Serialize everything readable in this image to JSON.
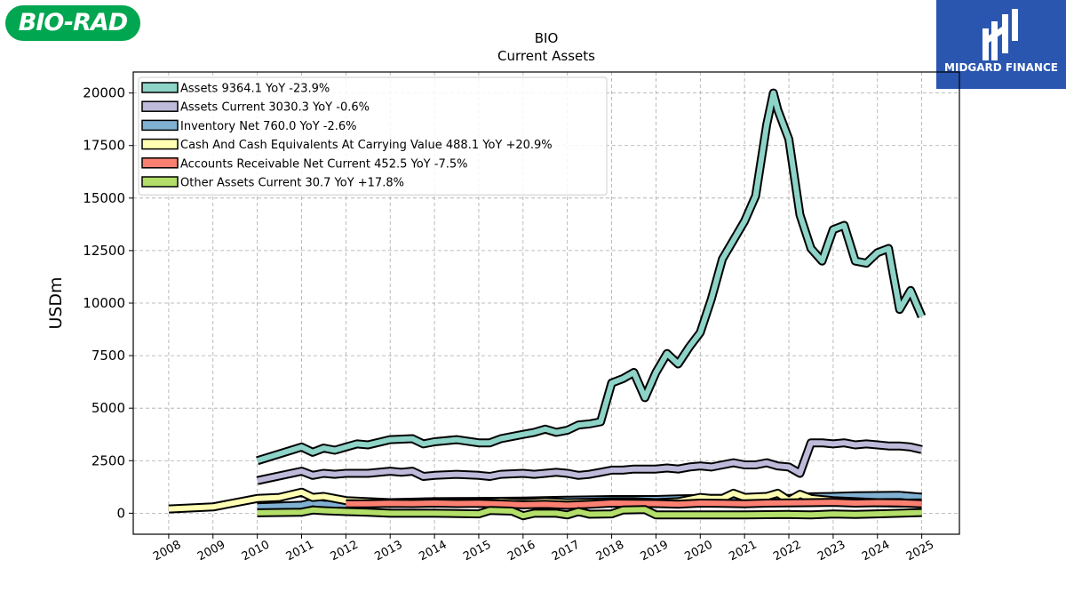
{
  "logos": {
    "left_text": "BIO-RAD",
    "right_text": "MIDGARD FINANCE",
    "left_color": "#00a650",
    "right_color": "#2a56b0"
  },
  "chart_data": {
    "type": "line",
    "title": "BIO",
    "subtitle": "Current  Assets",
    "ylabel": "USDm",
    "xlabel": "",
    "ylim": [
      -1000,
      21000
    ],
    "xlim": [
      2007.2,
      2025.85
    ],
    "yticks": [
      0,
      2500,
      5000,
      7500,
      10000,
      12500,
      15000,
      17500,
      20000
    ],
    "xticks": [
      "2008",
      "2009",
      "2010",
      "2011",
      "2012",
      "2013",
      "2014",
      "2015",
      "2016",
      "2017",
      "2018",
      "2019",
      "2020",
      "2021",
      "2022",
      "2023",
      "2024",
      "2025"
    ],
    "grid": true,
    "legend_position": "top-left",
    "series": [
      {
        "name": "Assets",
        "legend": "Assets  9364.1 YoY -23.9%",
        "color": "#8dd3c7",
        "x": [
          2010.0,
          2011.0,
          2011.25,
          2011.5,
          2011.75,
          2012.0,
          2012.25,
          2012.5,
          2013.0,
          2013.5,
          2013.75,
          2014.0,
          2014.5,
          2015.0,
          2015.25,
          2015.5,
          2016.0,
          2016.25,
          2016.5,
          2016.75,
          2017.0,
          2017.25,
          2017.5,
          2017.75,
          2018.0,
          2018.25,
          2018.5,
          2018.75,
          2019.0,
          2019.25,
          2019.5,
          2019.75,
          2020.0,
          2020.25,
          2020.5,
          2020.75,
          2021.0,
          2021.25,
          2021.5,
          2021.65,
          2021.75,
          2022.0,
          2022.25,
          2022.5,
          2022.75,
          2023.0,
          2023.25,
          2023.5,
          2023.75,
          2024.0,
          2024.25,
          2024.5,
          2024.75,
          2025.0
        ],
        "y": [
          2500,
          3150,
          2900,
          3100,
          3000,
          3150,
          3300,
          3250,
          3500,
          3550,
          3300,
          3400,
          3500,
          3350,
          3350,
          3550,
          3750,
          3850,
          4000,
          3850,
          3950,
          4200,
          4250,
          4350,
          6200,
          6400,
          6700,
          5500,
          6700,
          7600,
          7100,
          7900,
          8600,
          10200,
          12100,
          13000,
          13900,
          15100,
          18500,
          20000,
          19200,
          17800,
          14200,
          12600,
          12000,
          13500,
          13700,
          12000,
          11900,
          12400,
          12600,
          9700,
          10600,
          9364
        ]
      },
      {
        "name": "Assets Current",
        "legend": "Assets Current  3030.3 YoY -0.6%",
        "color": "#bebada",
        "x": [
          2010.0,
          2011.0,
          2011.25,
          2011.5,
          2011.75,
          2012.0,
          2012.5,
          2013.0,
          2013.25,
          2013.5,
          2013.75,
          2014.0,
          2014.5,
          2015.0,
          2015.25,
          2015.5,
          2016.0,
          2016.25,
          2016.5,
          2016.75,
          2017.0,
          2017.25,
          2017.5,
          2017.75,
          2018.0,
          2018.25,
          2018.5,
          2018.75,
          2019.0,
          2019.25,
          2019.5,
          2019.75,
          2020.0,
          2020.25,
          2020.5,
          2020.75,
          2021.0,
          2021.25,
          2021.5,
          2021.75,
          2022.0,
          2022.25,
          2022.5,
          2022.75,
          2023.0,
          2023.25,
          2023.5,
          2023.75,
          2024.0,
          2024.25,
          2024.5,
          2024.75,
          2025.0
        ],
        "y": [
          1550,
          2000,
          1800,
          1900,
          1850,
          1900,
          1900,
          2000,
          1950,
          2000,
          1750,
          1800,
          1850,
          1800,
          1750,
          1850,
          1900,
          1850,
          1900,
          1950,
          1900,
          1800,
          1850,
          1950,
          2050,
          2050,
          2100,
          2100,
          2100,
          2150,
          2100,
          2200,
          2250,
          2200,
          2300,
          2400,
          2300,
          2300,
          2400,
          2250,
          2200,
          1900,
          3350,
          3350,
          3300,
          3350,
          3250,
          3300,
          3250,
          3200,
          3200,
          3150,
          3030
        ]
      },
      {
        "name": "Inventory Net",
        "legend": "Inventory Net  760.0 YoY -2.6%",
        "color": "#80b1d3",
        "x": [
          2010.0,
          2011.0,
          2011.25,
          2011.5,
          2012.0,
          2012.5,
          2013.0,
          2014.0,
          2015.0,
          2016.0,
          2017.0,
          2018.0,
          2019.0,
          2019.5,
          2020.0,
          2020.5,
          2021.0,
          2021.5,
          2021.75,
          2022.0,
          2022.25,
          2022.5,
          2023.0,
          2023.5,
          2024.0,
          2024.5,
          2025.0
        ],
        "y": [
          300,
          380,
          500,
          420,
          420,
          480,
          500,
          550,
          560,
          580,
          620,
          650,
          650,
          680,
          700,
          700,
          680,
          700,
          720,
          700,
          750,
          780,
          800,
          830,
          840,
          850,
          760
        ]
      },
      {
        "name": "Cash And Cash Equivalents At Carrying Value",
        "legend": "Cash And Cash Equivalents At Carrying Value  488.1 YoY +20.9%",
        "color": "#ffffb3",
        "x": [
          2008.0,
          2009.0,
          2010.0,
          2010.5,
          2011.0,
          2011.25,
          2011.5,
          2011.75,
          2012.0,
          2012.5,
          2013.0,
          2013.5,
          2014.0,
          2015.0,
          2015.5,
          2016.0,
          2016.5,
          2017.0,
          2017.5,
          2018.0,
          2018.5,
          2019.0,
          2019.5,
          2020.0,
          2020.25,
          2020.5,
          2020.75,
          2021.0,
          2021.5,
          2021.75,
          2022.0,
          2022.25,
          2022.5,
          2023.0,
          2023.5,
          2024.0,
          2024.5,
          2025.0
        ],
        "y": [
          200,
          300,
          700,
          750,
          1000,
          750,
          800,
          700,
          600,
          550,
          500,
          500,
          550,
          500,
          550,
          500,
          550,
          500,
          520,
          550,
          550,
          500,
          550,
          750,
          700,
          700,
          950,
          750,
          800,
          950,
          600,
          900,
          700,
          600,
          550,
          500,
          480,
          488
        ]
      },
      {
        "name": "Accounts Receivable Net Current",
        "legend": "Accounts Receivable Net Current  452.5 YoY -7.5%",
        "color": "#fb8072",
        "x": [
          2012.0,
          2012.5,
          2013.0,
          2013.5,
          2014.0,
          2014.5,
          2015.0,
          2015.5,
          2016.0,
          2016.5,
          2017.0,
          2017.5,
          2018.0,
          2018.5,
          2019.0,
          2019.5,
          2020.0,
          2020.5,
          2021.0,
          2021.5,
          2022.0,
          2022.5,
          2023.0,
          2023.5,
          2024.0,
          2024.5,
          2025.0
        ],
        "y": [
          450,
          450,
          470,
          460,
          480,
          460,
          470,
          440,
          400,
          420,
          380,
          420,
          480,
          470,
          460,
          430,
          480,
          470,
          450,
          480,
          490,
          500,
          520,
          480,
          500,
          490,
          452
        ]
      },
      {
        "name": "Other Assets Current",
        "legend": "Other Assets Current  30.7 YoY +17.8%",
        "color": "#b3de69",
        "x": [
          2010.0,
          2011.0,
          2011.25,
          2011.5,
          2012.0,
          2012.5,
          2013.0,
          2014.0,
          2015.0,
          2015.25,
          2015.75,
          2016.0,
          2016.25,
          2016.75,
          2017.0,
          2017.25,
          2017.5,
          2018.0,
          2018.25,
          2018.75,
          2019.0,
          2019.5,
          2020.0,
          2021.0,
          2022.0,
          2022.5,
          2023.0,
          2023.5,
          2024.0,
          2025.0
        ],
        "y": [
          20,
          50,
          150,
          120,
          80,
          50,
          0,
          0,
          -30,
          130,
          100,
          -120,
          0,
          0,
          -80,
          80,
          -50,
          -30,
          150,
          170,
          -80,
          -80,
          -80,
          -80,
          -60,
          -80,
          -40,
          -60,
          -30,
          31
        ]
      }
    ]
  }
}
